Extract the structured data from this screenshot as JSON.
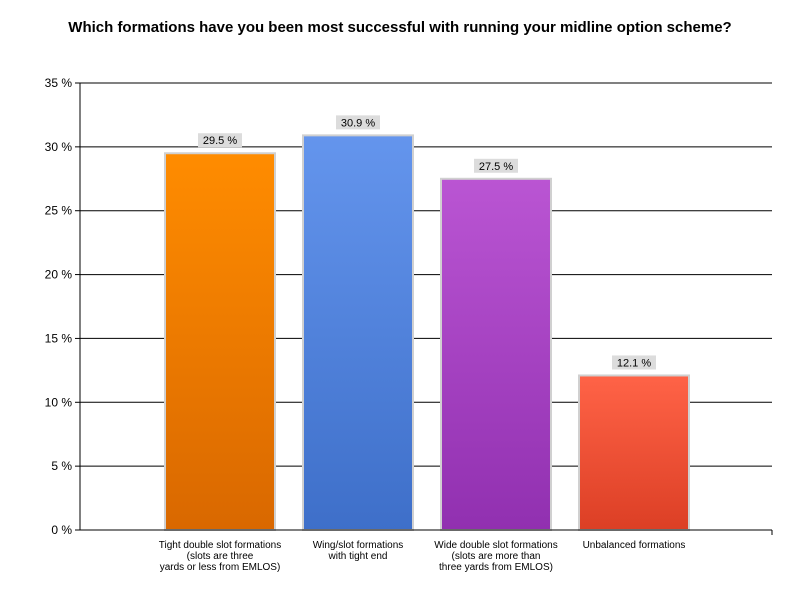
{
  "chart_data": {
    "type": "bar",
    "title": "Which formations have you been most successful with running your midline option scheme?",
    "categories": [
      "Tight double slot formations (slots are three yards or less from EMLOS)",
      "Wing/slot formations with tight end",
      "Wide double slot formations (slots are more than three yards from EMLOS)",
      "Unbalanced formations"
    ],
    "category_label_lines": [
      [
        "Tight double slot formations",
        "(slots are three",
        "yards or less from EMLOS)"
      ],
      [
        "Wing/slot formations",
        "with tight end"
      ],
      [
        "Wide double slot formations",
        "(slots are more than",
        "three yards from EMLOS)"
      ],
      [
        "Unbalanced formations"
      ]
    ],
    "values": [
      29.5,
      30.9,
      27.5,
      12.1
    ],
    "data_labels": [
      "29.5 %",
      "30.9 %",
      "27.5 %",
      "12.1 %"
    ],
    "ylim": [
      0,
      35
    ],
    "yticks": [
      0,
      5,
      10,
      15,
      20,
      25,
      30,
      35
    ],
    "ytick_labels": [
      "0 %",
      "5 %",
      "10 %",
      "15 %",
      "20 %",
      "25 %",
      "30 %",
      "35 %"
    ],
    "xlabel": "",
    "ylabel": "",
    "grid": true,
    "bar_colors": [
      [
        "#ff8c00",
        "#d96800"
      ],
      [
        "#6495ed",
        "#3e6fc9"
      ],
      [
        "#ba55d3",
        "#9130b0"
      ],
      [
        "#ff6347",
        "#dc3f25"
      ]
    ]
  }
}
